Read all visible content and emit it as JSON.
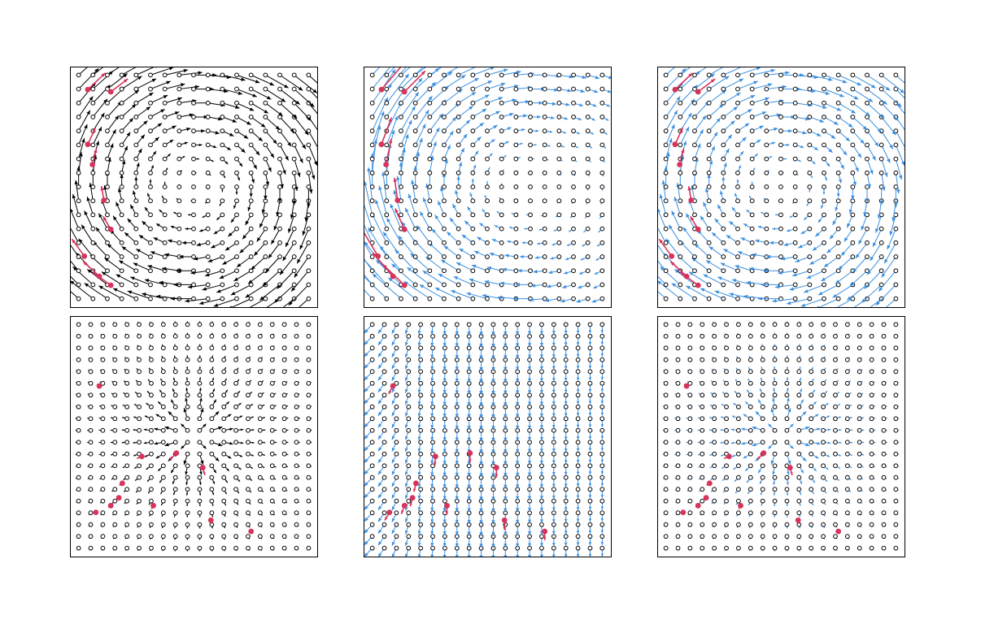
{
  "figure": {
    "rows": 2,
    "cols": 3,
    "background": "#ffffff"
  },
  "colors": {
    "reference_arrow": "#000000",
    "predicted_arrow": "#3a8fe0",
    "highlight_arrow": "#d7335b",
    "marker_edge": "#000000"
  },
  "chart_data": [
    {
      "type": "quiver",
      "field": "rotational",
      "arrow_color": "black",
      "grid": [
        17,
        17
      ],
      "xlim": [
        -1,
        1
      ],
      "ylim": [
        -1,
        1
      ],
      "highlight_points": [
        [
          -0.92,
          0.87
        ],
        [
          -0.72,
          0.85
        ],
        [
          -0.92,
          0.38
        ],
        [
          -0.88,
          0.2
        ],
        [
          -0.78,
          -0.12
        ],
        [
          -0.72,
          -0.38
        ],
        [
          -0.95,
          -0.62
        ],
        [
          -0.82,
          -0.8
        ],
        [
          -0.72,
          -0.88
        ]
      ]
    },
    {
      "type": "quiver",
      "field": "rotational-partial",
      "arrow_color": "blue",
      "grid": [
        17,
        17
      ],
      "xlim": [
        -1,
        1
      ],
      "ylim": [
        -1,
        1
      ],
      "highlight_points": [
        [
          -0.92,
          0.87
        ],
        [
          -0.72,
          0.85
        ],
        [
          -0.92,
          0.38
        ],
        [
          -0.88,
          0.2
        ],
        [
          -0.78,
          -0.12
        ],
        [
          -0.72,
          -0.38
        ],
        [
          -0.95,
          -0.62
        ],
        [
          -0.82,
          -0.8
        ],
        [
          -0.72,
          -0.88
        ]
      ]
    },
    {
      "type": "quiver",
      "field": "rotational",
      "arrow_color": "blue",
      "grid": [
        17,
        17
      ],
      "xlim": [
        -1,
        1
      ],
      "ylim": [
        -1,
        1
      ],
      "highlight_points": [
        [
          -0.92,
          0.87
        ],
        [
          -0.72,
          0.85
        ],
        [
          -0.92,
          0.38
        ],
        [
          -0.88,
          0.2
        ],
        [
          -0.78,
          -0.12
        ],
        [
          -0.72,
          -0.38
        ],
        [
          -0.95,
          -0.62
        ],
        [
          -0.82,
          -0.8
        ],
        [
          -0.72,
          -0.88
        ]
      ]
    },
    {
      "type": "quiver",
      "field": "radial",
      "arrow_color": "black",
      "grid": [
        20,
        20
      ],
      "xlim": [
        -1,
        1
      ],
      "ylim": [
        -1,
        1
      ],
      "highlight_points": [
        [
          -0.82,
          0.45
        ],
        [
          -0.45,
          -0.18
        ],
        [
          -0.15,
          -0.15
        ],
        [
          -0.62,
          -0.42
        ],
        [
          -0.65,
          -0.55
        ],
        [
          -0.72,
          -0.62
        ],
        [
          -0.85,
          -0.68
        ],
        [
          -0.35,
          -0.62
        ],
        [
          0.08,
          -0.28
        ],
        [
          0.15,
          -0.75
        ],
        [
          0.5,
          -0.85
        ]
      ]
    },
    {
      "type": "quiver",
      "field": "vertical",
      "arrow_color": "blue",
      "grid": [
        20,
        20
      ],
      "xlim": [
        -1,
        1
      ],
      "ylim": [
        -1,
        1
      ],
      "highlight_points": [
        [
          -0.82,
          0.45
        ],
        [
          -0.45,
          -0.18
        ],
        [
          -0.15,
          -0.15
        ],
        [
          -0.62,
          -0.42
        ],
        [
          -0.65,
          -0.55
        ],
        [
          -0.72,
          -0.62
        ],
        [
          -0.85,
          -0.68
        ],
        [
          -0.35,
          -0.62
        ],
        [
          0.08,
          -0.28
        ],
        [
          0.15,
          -0.75
        ],
        [
          0.5,
          -0.85
        ]
      ]
    },
    {
      "type": "quiver",
      "field": "radial",
      "arrow_color": "blue",
      "grid": [
        20,
        20
      ],
      "xlim": [
        -1,
        1
      ],
      "ylim": [
        -1,
        1
      ],
      "highlight_points": [
        [
          -0.82,
          0.45
        ],
        [
          -0.45,
          -0.18
        ],
        [
          -0.15,
          -0.15
        ],
        [
          -0.62,
          -0.42
        ],
        [
          -0.65,
          -0.55
        ],
        [
          -0.72,
          -0.62
        ],
        [
          -0.85,
          -0.68
        ],
        [
          -0.35,
          -0.62
        ],
        [
          0.08,
          -0.28
        ],
        [
          0.15,
          -0.75
        ],
        [
          0.5,
          -0.85
        ]
      ]
    }
  ]
}
